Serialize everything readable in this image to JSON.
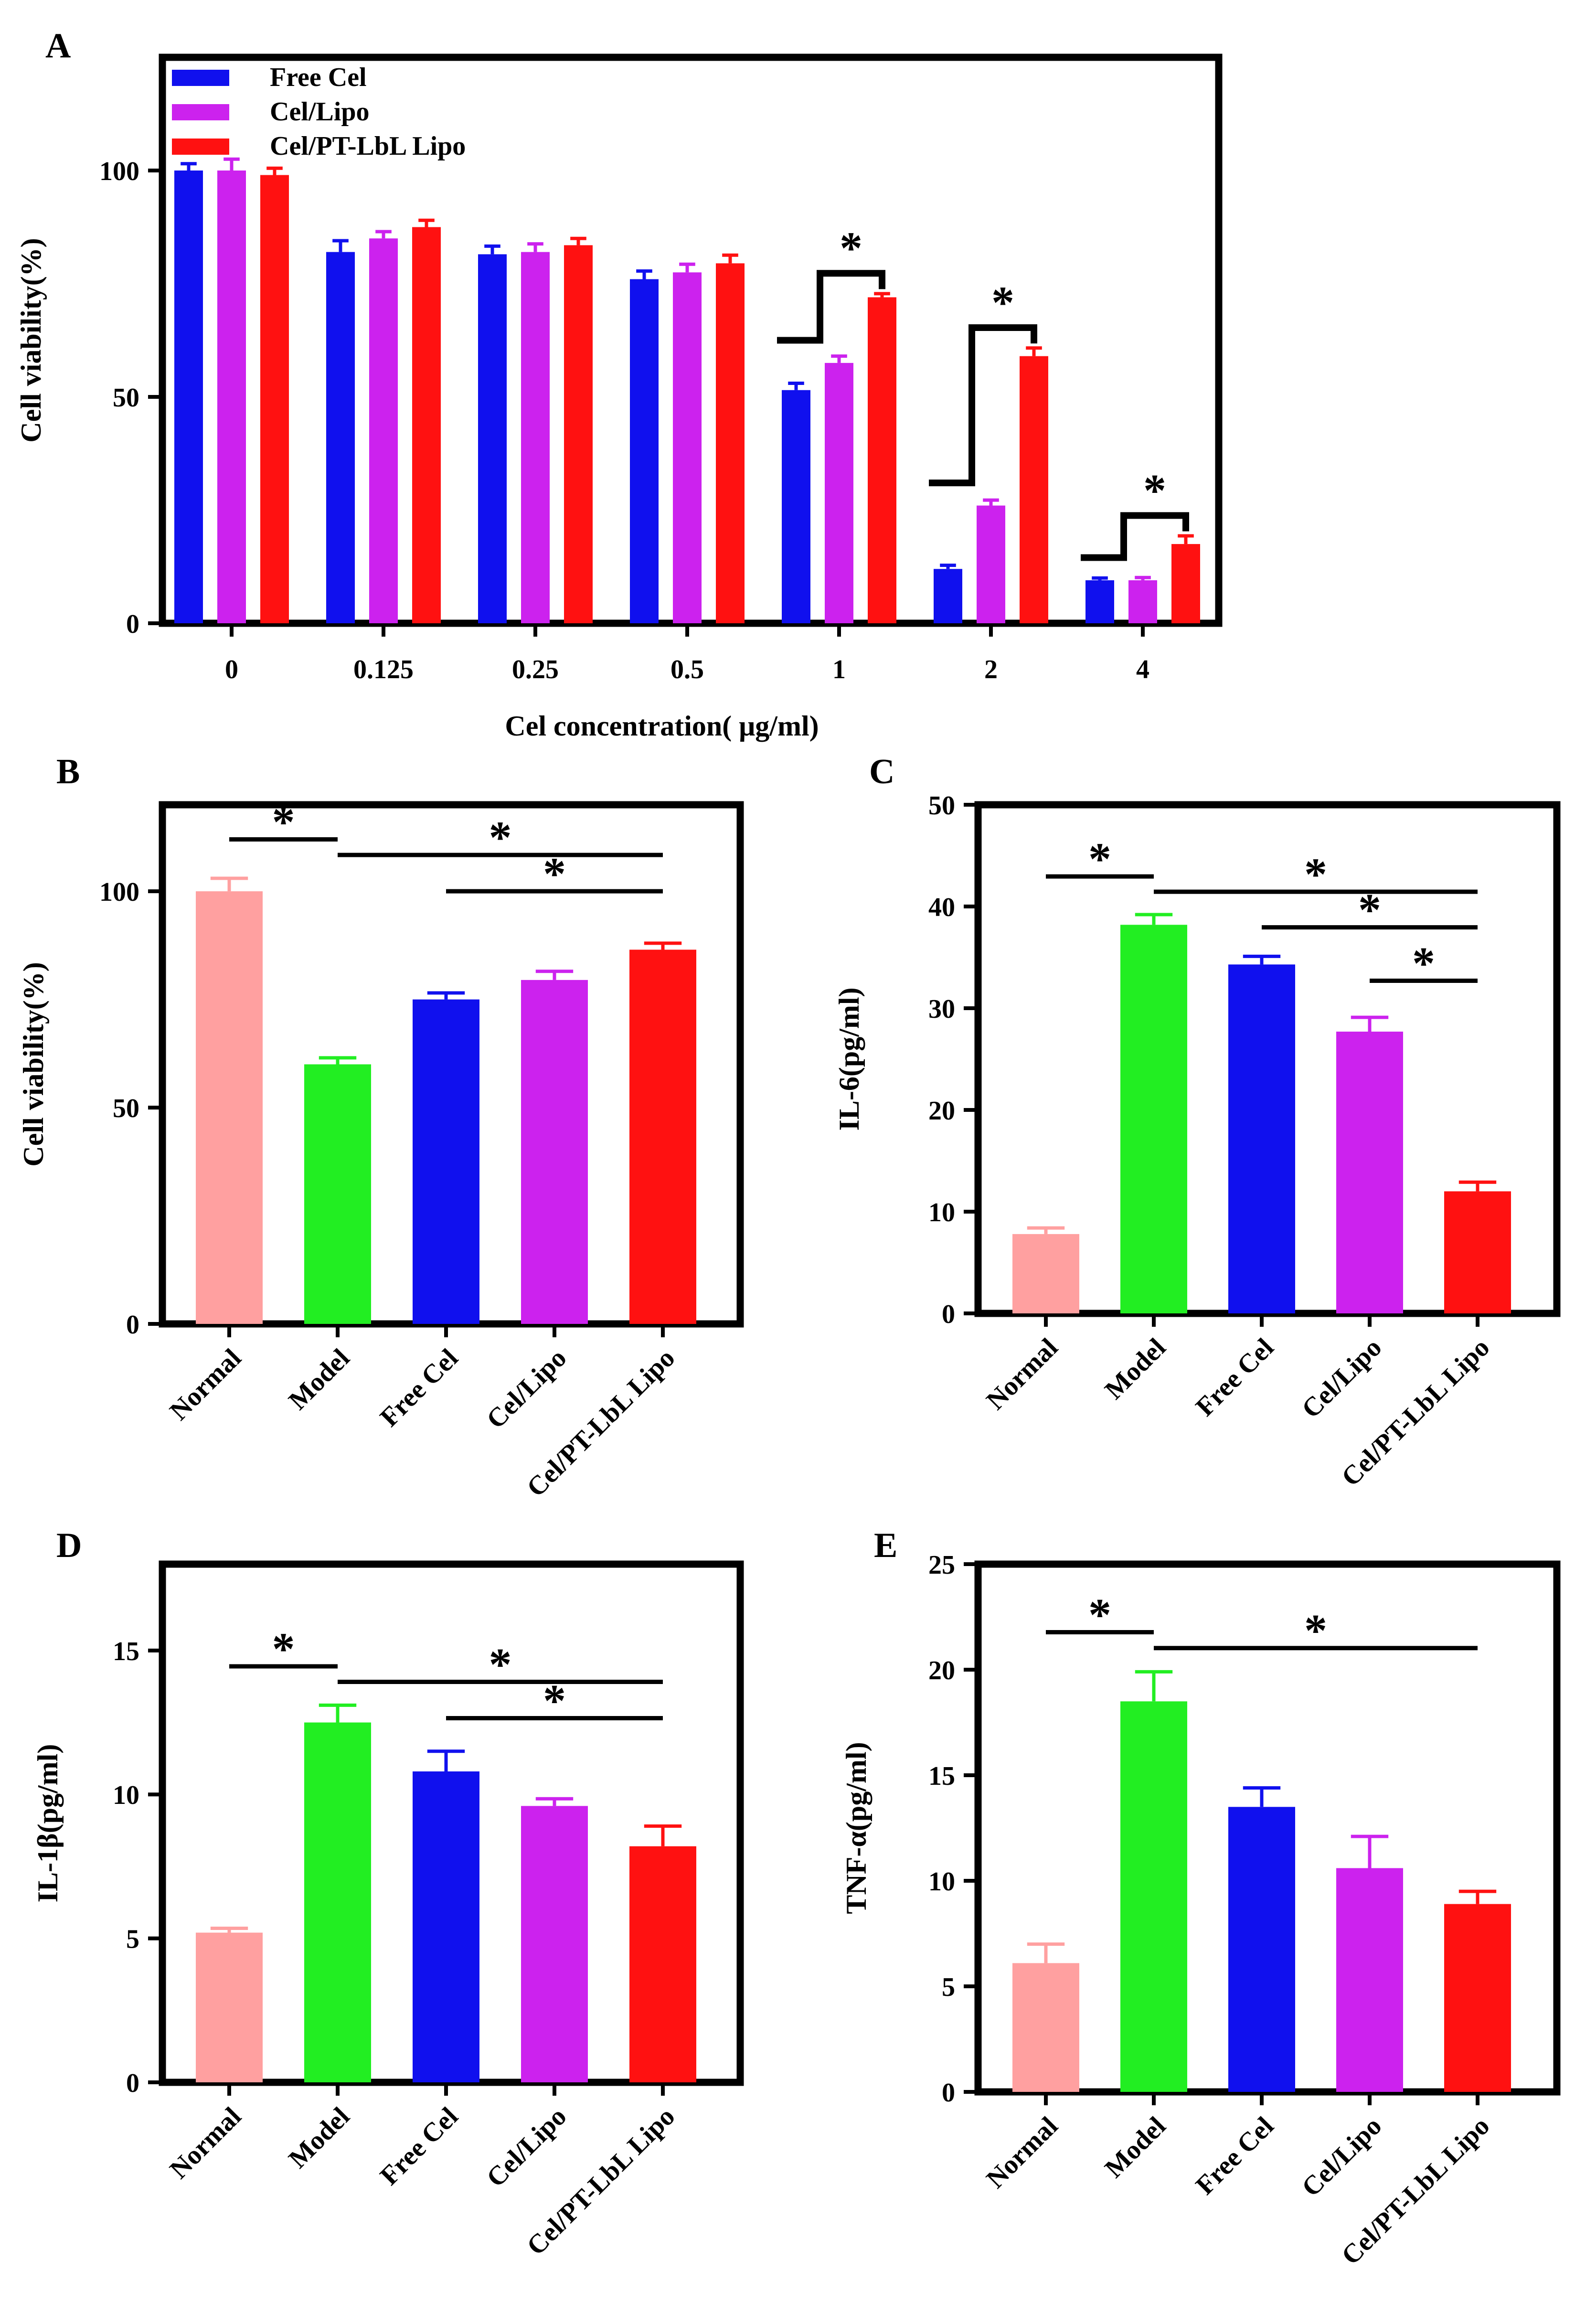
{
  "chart_data": [
    {
      "panel": "A",
      "type": "bar",
      "xlabel": "Cel concentration( μg/ml)",
      "ylabel": "Cell viability(%)",
      "ylim": [
        0,
        125
      ],
      "yticks": [
        0,
        50,
        100
      ],
      "categories": [
        "0",
        "0.125",
        "0.25",
        "0.5",
        "1",
        "2",
        "4"
      ],
      "series": [
        {
          "name": "Free Cel",
          "color": "#1010ee",
          "values": [
            100,
            82,
            81.5,
            76,
            51.5,
            12,
            9.5
          ],
          "errors": [
            1.5,
            2.5,
            1.8,
            1.8,
            1.5,
            0.8,
            0.5
          ]
        },
        {
          "name": "Cel/Lipo",
          "color": "#cc22ee",
          "values": [
            100,
            85,
            82,
            77.5,
            57.5,
            26,
            9.5
          ],
          "errors": [
            2.5,
            1.5,
            1.8,
            1.8,
            1.5,
            1.2,
            0.6
          ]
        },
        {
          "name": "Cel/PT-LbL Lipo",
          "color": "#ff1111",
          "values": [
            99,
            87.5,
            83.5,
            79.5,
            72,
            59,
            17.5
          ],
          "errors": [
            1.5,
            1.5,
            1.5,
            1.8,
            0.8,
            1.8,
            1.8
          ]
        }
      ],
      "significance": [
        {
          "category_index": 4,
          "label": "*"
        },
        {
          "category_index": 5,
          "label": "*"
        },
        {
          "category_index": 6,
          "label": "*"
        }
      ]
    },
    {
      "panel": "B",
      "type": "bar",
      "ylabel": "Cell viability(%)",
      "ylim": [
        0,
        120
      ],
      "yticks": [
        0,
        50,
        100
      ],
      "categories": [
        "Normal",
        "Model",
        "Free Cel",
        "Cel/Lipo",
        "Cel/PT-LbL Lipo"
      ],
      "colors": [
        "#ffa0a0",
        "#22ee22",
        "#1010ee",
        "#cc22ee",
        "#ff1111"
      ],
      "values": [
        100,
        60,
        75,
        79.5,
        86.5
      ],
      "errors": [
        3,
        1.5,
        1.5,
        2,
        1.5
      ],
      "significance": [
        {
          "from": 0,
          "to": 1,
          "label": "*"
        },
        {
          "from": 1,
          "to": 4,
          "label": "*"
        },
        {
          "from": 2,
          "to": 4,
          "label": "*"
        }
      ]
    },
    {
      "panel": "C",
      "type": "bar",
      "ylabel": "IL-6(pg/ml)",
      "ylim": [
        0,
        50
      ],
      "yticks": [
        0,
        10,
        20,
        30,
        40,
        50
      ],
      "categories": [
        "Normal",
        "Model",
        "Free Cel",
        "Cel/Lipo",
        "Cel/PT-LbL Lipo"
      ],
      "colors": [
        "#ffa0a0",
        "#22ee22",
        "#1010ee",
        "#cc22ee",
        "#ff1111"
      ],
      "values": [
        7.8,
        38.2,
        34.3,
        27.7,
        12
      ],
      "errors": [
        0.6,
        1,
        0.8,
        1.4,
        0.9
      ],
      "significance": [
        {
          "from": 0,
          "to": 1,
          "label": "*"
        },
        {
          "from": 1,
          "to": 4,
          "label": "*"
        },
        {
          "from": 2,
          "to": 4,
          "label": "*"
        },
        {
          "from": 3,
          "to": 4,
          "label": "*"
        }
      ]
    },
    {
      "panel": "D",
      "type": "bar",
      "ylabel": "IL-1β(pg/ml)",
      "ylim": [
        0,
        18
      ],
      "yticks": [
        0,
        5,
        10,
        15
      ],
      "categories": [
        "Normal",
        "Model",
        "Free Cel",
        "Cel/Lipo",
        "Cel/PT-LbL Lipo"
      ],
      "colors": [
        "#ffa0a0",
        "#22ee22",
        "#1010ee",
        "#cc22ee",
        "#ff1111"
      ],
      "values": [
        5.2,
        12.5,
        10.8,
        9.6,
        8.2
      ],
      "errors": [
        0.15,
        0.6,
        0.7,
        0.25,
        0.7
      ],
      "significance": [
        {
          "from": 0,
          "to": 1,
          "label": "*"
        },
        {
          "from": 1,
          "to": 4,
          "label": "*"
        },
        {
          "from": 2,
          "to": 4,
          "label": "*"
        }
      ]
    },
    {
      "panel": "E",
      "type": "bar",
      "ylabel": "TNF-α(pg/ml)",
      "ylim": [
        0,
        25
      ],
      "yticks": [
        0,
        5,
        10,
        15,
        20,
        25
      ],
      "categories": [
        "Normal",
        "Model",
        "Free Cel",
        "Cel/Lipo",
        "Cel/PT-LbL Lipo"
      ],
      "colors": [
        "#ffa0a0",
        "#22ee22",
        "#1010ee",
        "#cc22ee",
        "#ff1111"
      ],
      "values": [
        6.1,
        18.5,
        13.5,
        10.6,
        8.9
      ],
      "errors": [
        0.9,
        1.4,
        0.9,
        1.5,
        0.6
      ],
      "significance": [
        {
          "from": 0,
          "to": 1,
          "label": "*"
        },
        {
          "from": 1,
          "to": 4,
          "label": "*"
        }
      ]
    }
  ]
}
